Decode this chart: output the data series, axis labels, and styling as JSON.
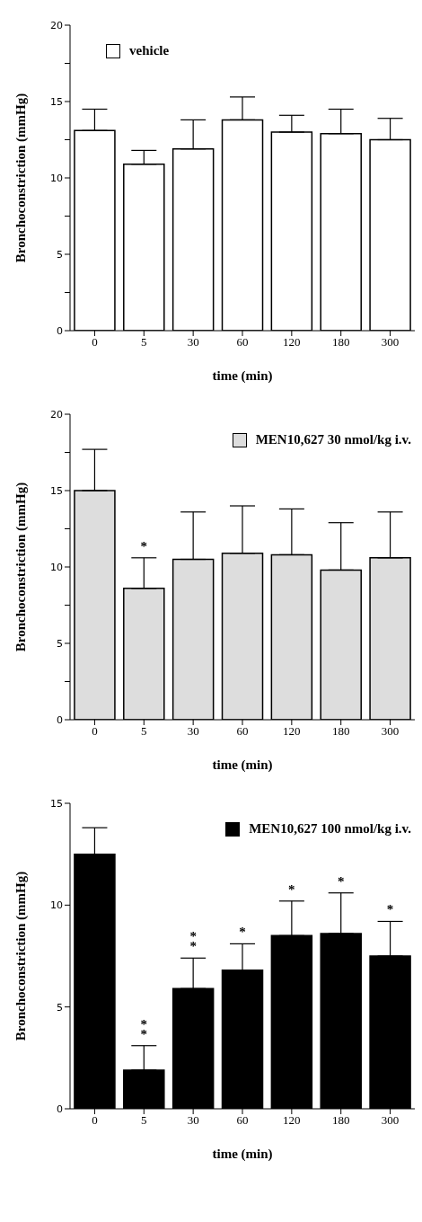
{
  "chart_data": [
    {
      "type": "bar",
      "ylabel": "Bronchoconstriction (mmHg)",
      "xlabel": "time (min)",
      "categories": [
        "0",
        "5",
        "30",
        "60",
        "120",
        "180",
        "300"
      ],
      "series": [
        {
          "name": "vehicle",
          "color": "#ffffff",
          "values": [
            13.1,
            10.9,
            11.9,
            13.8,
            13.0,
            12.9,
            12.5
          ],
          "errors": [
            [
              13.1,
              14.5
            ],
            [
              10.9,
              11.8
            ],
            [
              11.9,
              13.8
            ],
            [
              13.8,
              15.3
            ],
            [
              13.0,
              14.1
            ],
            [
              12.9,
              14.5
            ],
            [
              12.5,
              13.9
            ]
          ]
        }
      ],
      "ylim": [
        0,
        20
      ],
      "yticks": [
        0,
        {
          "value": 2.5,
          "label": null
        },
        5,
        {
          "value": 7.5,
          "label": null
        },
        10,
        {
          "value": 12.5,
          "label": null
        },
        15,
        {
          "value": 17.5,
          "label": null
        },
        20
      ],
      "grid": false,
      "legend": "top left"
    },
    {
      "type": "bar",
      "ylabel": "Bronchoconstriction (mmHg)",
      "xlabel": "time (min)",
      "categories": [
        "0",
        "5",
        "30",
        "60",
        "120",
        "180",
        "300"
      ],
      "series": [
        {
          "name": "MEN10,627 30 nmol/kg i.v.",
          "color": "#dddddd",
          "values": [
            15.0,
            8.6,
            10.5,
            10.9,
            10.8,
            9.8,
            10.6
          ],
          "errors": [
            [
              15.0,
              17.7
            ],
            [
              8.6,
              10.6
            ],
            [
              10.5,
              13.6
            ],
            [
              10.9,
              14.0
            ],
            [
              10.8,
              13.8
            ],
            [
              9.8,
              12.9
            ],
            [
              10.6,
              13.6
            ]
          ]
        }
      ],
      "ylim": [
        0,
        20
      ],
      "yticks": [
        0,
        {
          "value": 2.5,
          "label": null
        },
        5,
        {
          "value": 7.5,
          "label": null
        },
        10,
        {
          "value": 12.5,
          "label": null
        },
        15,
        {
          "value": 17.5,
          "label": null
        },
        20
      ],
      "grid": false,
      "legend": "top right",
      "annotations": [
        {
          "text": "*",
          "x": "5",
          "y": 10.6
        }
      ]
    },
    {
      "type": "bar",
      "ylabel": "Bronchoconstriction (mmHg)",
      "xlabel": "time (min)",
      "categories": [
        "0",
        "5",
        "30",
        "60",
        "120",
        "180",
        "300"
      ],
      "series": [
        {
          "name": "MEN10,627 100 nmol/kg i.v.",
          "color": "#000000",
          "values": [
            12.5,
            1.9,
            5.9,
            6.8,
            8.5,
            8.6,
            7.5
          ],
          "errors": [
            [
              12.5,
              13.8
            ],
            [
              1.9,
              3.1
            ],
            [
              5.9,
              7.4
            ],
            [
              6.8,
              8.1
            ],
            [
              8.5,
              10.2
            ],
            [
              8.6,
              10.6
            ],
            [
              7.5,
              9.2
            ]
          ]
        }
      ],
      "ylim": [
        0,
        15
      ],
      "yticks": [
        0,
        5,
        10,
        15
      ],
      "grid": false,
      "legend": "top right",
      "annotations": [
        {
          "text": "**",
          "x": "5",
          "y": 3.1
        },
        {
          "text": "**",
          "x": "30",
          "y": 7.4
        },
        {
          "text": "*",
          "x": "60",
          "y": 8.1
        },
        {
          "text": "*",
          "x": "120",
          "y": 10.2
        },
        {
          "text": "*",
          "x": "180",
          "y": 10.6
        },
        {
          "text": "*",
          "x": "300",
          "y": 9.2
        }
      ]
    }
  ]
}
